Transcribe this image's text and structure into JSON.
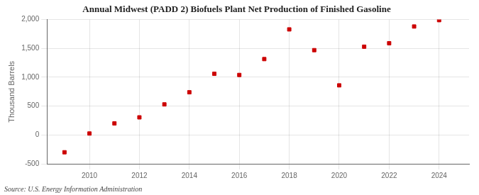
{
  "chart_data": {
    "type": "scatter",
    "title": "Annual Midwest (PADD 2) Biofuels Plant Net Production of Finished Gasoline",
    "ylabel": "Thousand Barrels",
    "annotation": "Source: U.S. Energy Information Administration",
    "x": [
      2009,
      2010,
      2011,
      2012,
      2013,
      2014,
      2015,
      2016,
      2017,
      2018,
      2019,
      2020,
      2021,
      2022,
      2023,
      2024
    ],
    "values": [
      -300,
      25,
      200,
      305,
      530,
      740,
      1060,
      1040,
      1315,
      1830,
      1470,
      860,
      1530,
      1590,
      1880,
      1990
    ],
    "color": "#cc0000",
    "marker": "square",
    "xlim": [
      2008.3,
      2025.2
    ],
    "xticks": [
      2010,
      2012,
      2014,
      2016,
      2018,
      2020,
      2022,
      2024
    ],
    "ylim": [
      -500,
      2000
    ],
    "yticks": [
      -500,
      0,
      500,
      {
        "value": 1000,
        "label": "1,000"
      },
      {
        "value": 1500,
        "label": "1,500"
      },
      {
        "value": 2000,
        "label": "2,000"
      }
    ],
    "grid": true
  }
}
